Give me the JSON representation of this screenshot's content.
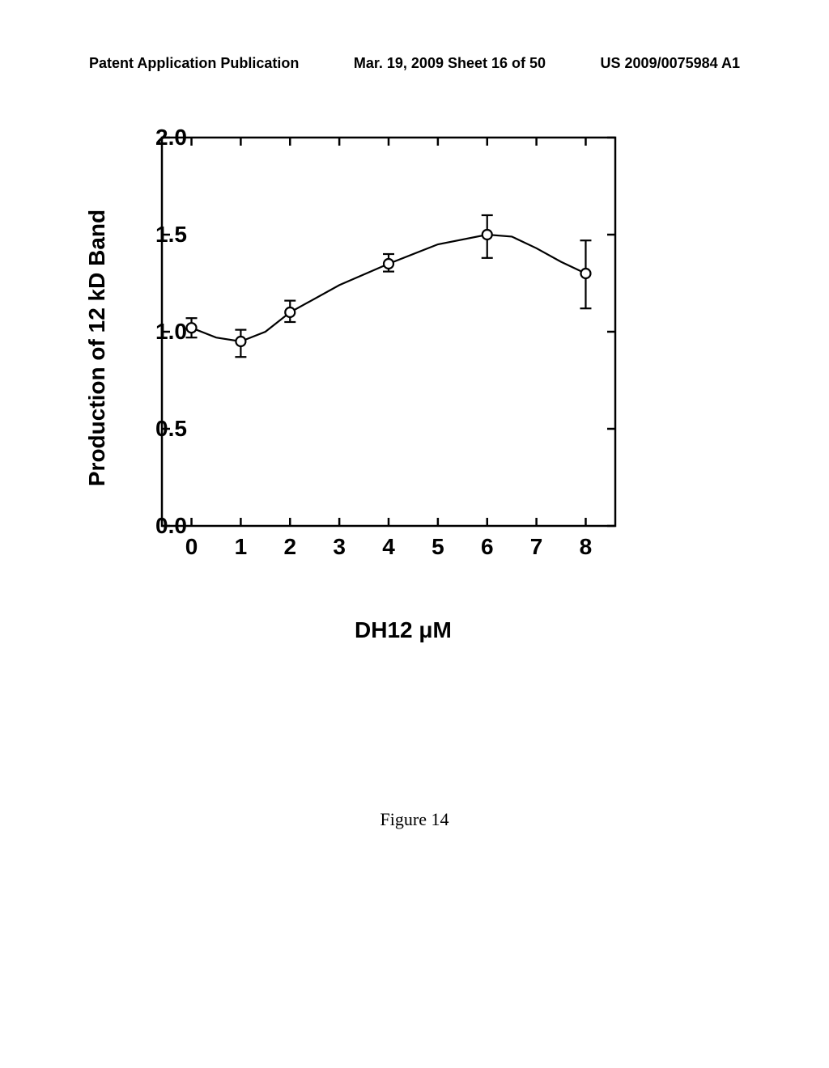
{
  "header": {
    "left": "Patent Application Publication",
    "center": "Mar. 19, 2009  Sheet 16 of 50",
    "right": "US 2009/0075984 A1"
  },
  "chart": {
    "type": "scatter-errorbar-line",
    "xlabel": "DH12   μM",
    "ylabel": "Production of 12 kD Band",
    "xlim": [
      -0.6,
      8.6
    ],
    "ylim": [
      0.0,
      2.0
    ],
    "xticks": [
      0,
      1,
      2,
      3,
      4,
      5,
      6,
      7,
      8
    ],
    "xtick_labels": [
      "0",
      "1",
      "2",
      "3",
      "4",
      "5",
      "6",
      "7",
      "8"
    ],
    "yticks": [
      0.0,
      0.5,
      1.0,
      1.5,
      2.0
    ],
    "ytick_labels": [
      "0.0",
      "0.5",
      "1.0",
      "1.5",
      "2.0"
    ],
    "tick_len": 10,
    "axis_width": 2.5,
    "marker_radius": 6,
    "marker_stroke": 2.2,
    "marker_fill": "#ffffff",
    "marker_color": "#000000",
    "errorbar_width": 2.2,
    "cap_halfwidth": 7,
    "line_width": 2.2,
    "line_color": "#000000",
    "background_color": "#ffffff",
    "label_fontsize": 28,
    "tick_fontsize": 28,
    "points": [
      {
        "x": 0,
        "y": 1.02,
        "elo": 0.05,
        "ehi": 0.05
      },
      {
        "x": 1,
        "y": 0.95,
        "elo": 0.08,
        "ehi": 0.06
      },
      {
        "x": 2,
        "y": 1.1,
        "elo": 0.05,
        "ehi": 0.06
      },
      {
        "x": 4,
        "y": 1.35,
        "elo": 0.04,
        "ehi": 0.05
      },
      {
        "x": 6,
        "y": 1.5,
        "elo": 0.12,
        "ehi": 0.1
      },
      {
        "x": 8,
        "y": 1.3,
        "elo": 0.18,
        "ehi": 0.17
      }
    ],
    "curve": [
      {
        "x": 0,
        "y": 1.02
      },
      {
        "x": 0.5,
        "y": 0.97
      },
      {
        "x": 1,
        "y": 0.95
      },
      {
        "x": 1.5,
        "y": 1.0
      },
      {
        "x": 2,
        "y": 1.1
      },
      {
        "x": 3,
        "y": 1.24
      },
      {
        "x": 4,
        "y": 1.35
      },
      {
        "x": 5,
        "y": 1.45
      },
      {
        "x": 6,
        "y": 1.5
      },
      {
        "x": 6.5,
        "y": 1.49
      },
      {
        "x": 7,
        "y": 1.43
      },
      {
        "x": 7.5,
        "y": 1.36
      },
      {
        "x": 8,
        "y": 1.3
      }
    ]
  },
  "caption": "Figure 14"
}
